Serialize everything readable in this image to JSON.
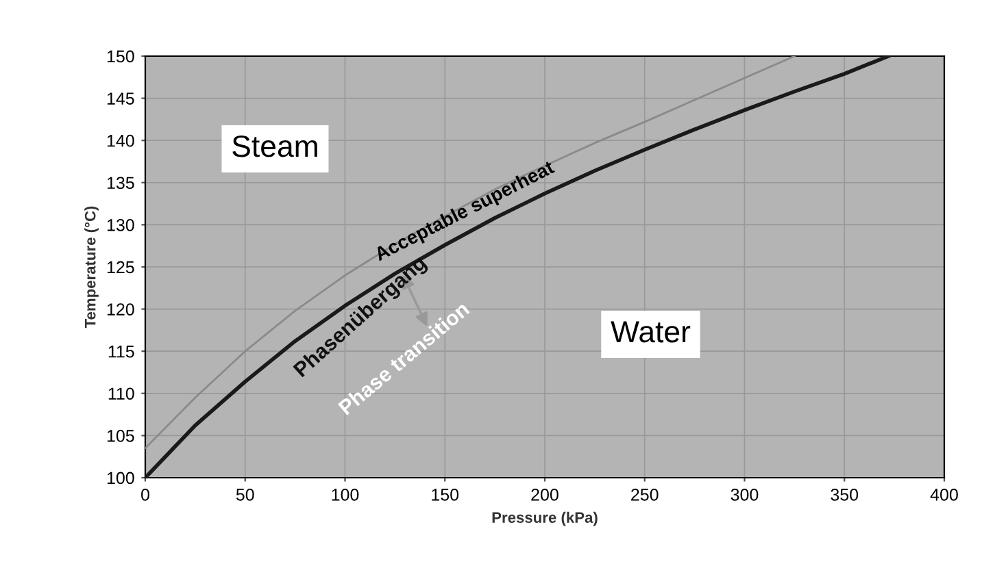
{
  "chart_data": {
    "type": "line",
    "xlabel": "Pressure (kPa)",
    "ylabel": "Temperature (°C)",
    "xlim": [
      0,
      400
    ],
    "ylim": [
      100,
      150
    ],
    "xticks": [
      0,
      50,
      100,
      150,
      200,
      250,
      300,
      350,
      400
    ],
    "yticks": [
      100,
      105,
      110,
      115,
      120,
      125,
      130,
      135,
      140,
      145,
      150
    ],
    "grid": true,
    "marker": "none",
    "line_style": "solid",
    "series": [
      {
        "color": "#1a1a1a",
        "x": [
          0,
          25,
          50,
          75,
          100,
          125,
          150,
          175,
          200,
          225,
          250,
          275,
          300,
          325,
          350,
          372
        ],
        "values": [
          100,
          106.2,
          111.4,
          116.2,
          120.4,
          124.2,
          127.6,
          130.8,
          133.7,
          136.4,
          138.9,
          141.3,
          143.6,
          145.8,
          147.9,
          150
        ]
      },
      {
        "color": "#8a8a8a",
        "x": [
          0,
          25,
          50,
          75,
          100,
          125,
          150,
          175,
          200,
          225,
          250,
          275,
          300,
          325
        ],
        "values": [
          103.5,
          109.5,
          115,
          119.8,
          124,
          127.7,
          131,
          134.2,
          137,
          139.7,
          142.2,
          144.8,
          147.4,
          150
        ]
      }
    ],
    "annotations": [
      "Steam",
      "Water",
      "Acceptable superheat",
      "Phasenübergang",
      "Phase transition"
    ]
  }
}
